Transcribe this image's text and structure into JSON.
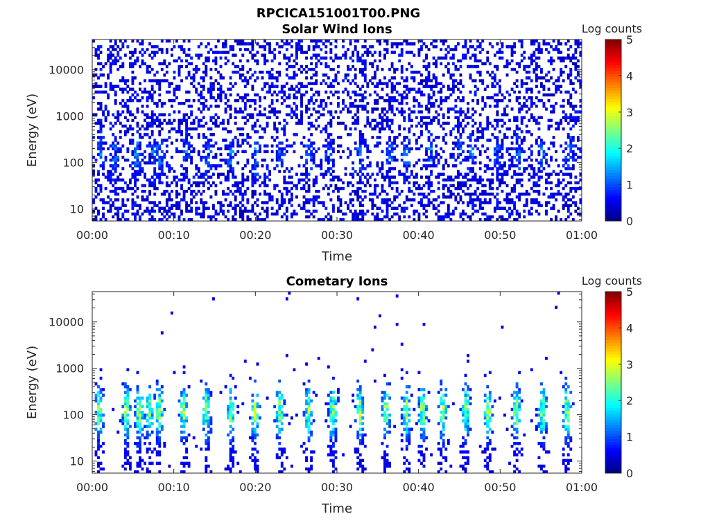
{
  "figure": {
    "title": "RPCICA151001T00.PNG"
  },
  "chart_data": [
    {
      "type": "heatmap",
      "title": "Solar Wind Ions",
      "xlabel": "Time",
      "ylabel": "Energy (eV)",
      "x_ticks": [
        "00:00",
        "00:10",
        "00:20",
        "00:30",
        "00:40",
        "00:50",
        "01:00"
      ],
      "x_range_minutes": [
        0,
        60
      ],
      "y_scale": "log",
      "y_ticks": [
        {
          "value": 10,
          "label": "10"
        },
        {
          "value": 100,
          "label": "100"
        },
        {
          "value": 1000,
          "label": "1000"
        },
        {
          "value": 10000,
          "label": "10000"
        }
      ],
      "y_range_ev": [
        5.5,
        45000
      ],
      "colorbar": {
        "label": "Log counts",
        "range": [
          0,
          5
        ],
        "ticks": [
          "0",
          "1",
          "2",
          "3",
          "4",
          "5"
        ],
        "colormap": "jet"
      },
      "bursts_minutes": [
        1.0,
        2.8,
        5.5,
        7.5,
        8.2,
        11.5,
        14.3,
        17.0,
        20.0,
        23.0,
        26.5,
        29.0,
        32.8,
        36.5,
        38.5,
        41.5,
        45.0,
        46.5,
        49.5,
        52.2,
        55.0,
        58.5
      ],
      "peak_energy_ev": 150
    },
    {
      "type": "heatmap",
      "title": "Cometary Ions",
      "xlabel": "Time",
      "ylabel": "Energy (eV)",
      "x_ticks": [
        "00:00",
        "00:10",
        "00:20",
        "00:30",
        "00:40",
        "00:50",
        "01:00"
      ],
      "x_range_minutes": [
        0,
        60
      ],
      "y_scale": "log",
      "y_ticks": [
        {
          "value": 10,
          "label": "10"
        },
        {
          "value": 100,
          "label": "100"
        },
        {
          "value": 1000,
          "label": "1000"
        },
        {
          "value": 10000,
          "label": "10000"
        }
      ],
      "y_range_ev": [
        5.5,
        45000
      ],
      "colorbar": {
        "label": "Log counts",
        "range": [
          0,
          5
        ],
        "ticks": [
          "0",
          "1",
          "2",
          "3",
          "4",
          "5"
        ],
        "colormap": "jet"
      },
      "bursts_minutes": [
        0.8,
        4.2,
        5.8,
        7.0,
        8.2,
        11.2,
        14.0,
        17.0,
        20.0,
        23.0,
        26.5,
        29.5,
        32.8,
        36.0,
        38.5,
        40.5,
        43.0,
        45.8,
        48.5,
        52.0,
        55.2,
        58.2
      ],
      "peak_energy_ev": 120
    }
  ]
}
